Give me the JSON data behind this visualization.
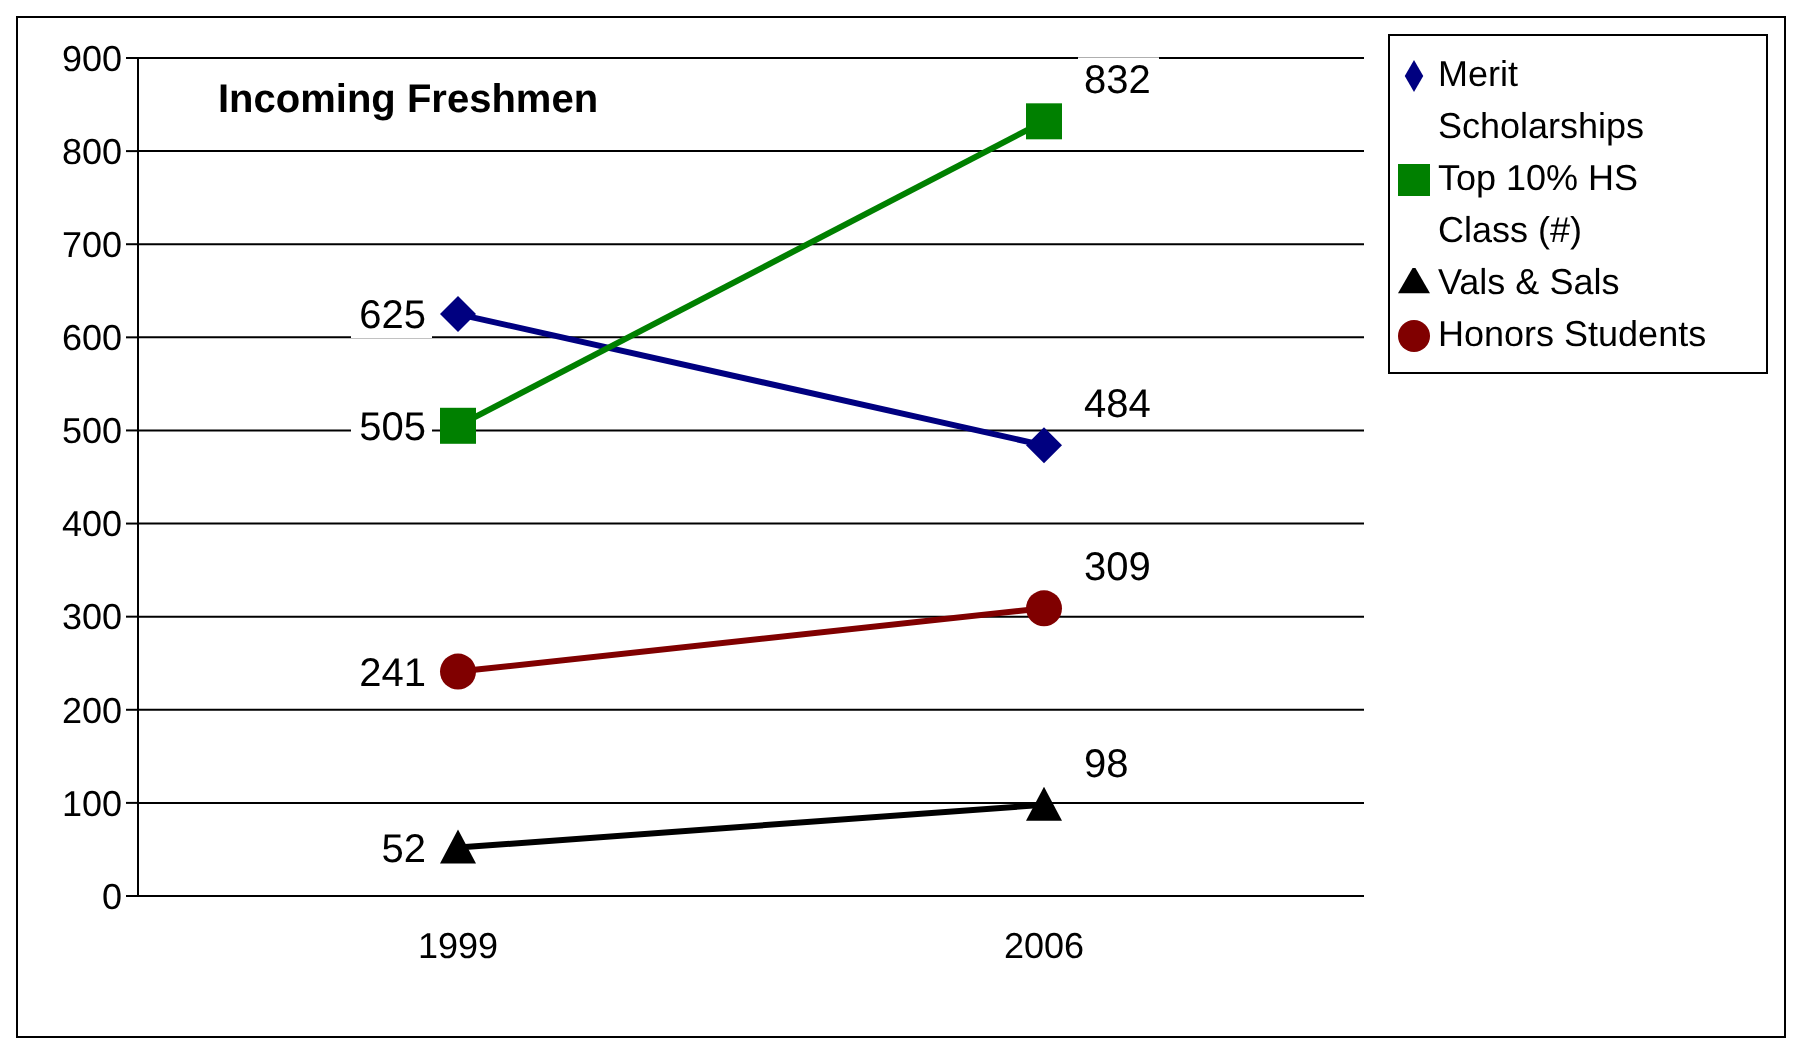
{
  "chart_data": {
    "type": "line",
    "title": "Incoming Freshmen",
    "categories": [
      "1999",
      "2006"
    ],
    "series": [
      {
        "name": "Merit Scholarships",
        "color": "#000080",
        "values": [
          625,
          484
        ],
        "marker": "diamond"
      },
      {
        "name": "Top 10% HS Class (#)",
        "color": "#008000",
        "values": [
          505,
          832
        ],
        "marker": "square"
      },
      {
        "name": "Vals & Sals",
        "color": "#000000",
        "values": [
          52,
          98
        ],
        "marker": "triangle"
      },
      {
        "name": "Honors Students",
        "color": "#800000",
        "values": [
          241,
          309
        ],
        "marker": "circle"
      }
    ],
    "ylim": [
      0,
      900
    ],
    "yticks": [
      0,
      100,
      200,
      300,
      400,
      500,
      600,
      700,
      800,
      900
    ],
    "grid": "y",
    "legend": "top right",
    "data_labels": true
  }
}
